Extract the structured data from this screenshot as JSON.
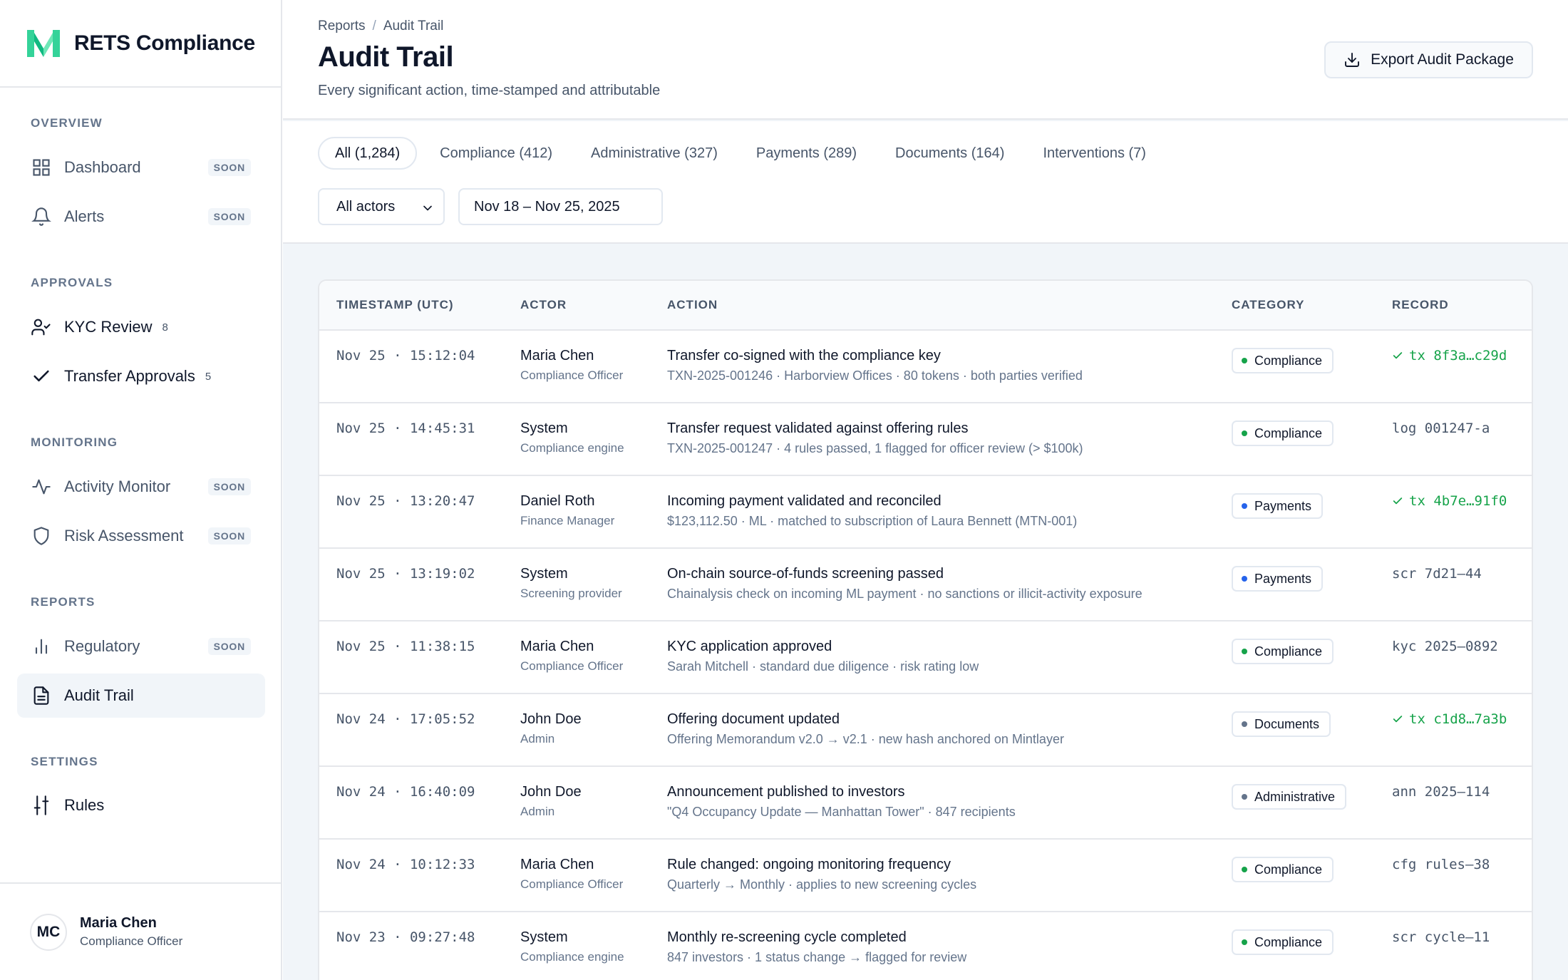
{
  "brand": {
    "name": "RETS Compliance",
    "accent": "#34d399"
  },
  "sidebar": {
    "sections": [
      {
        "title": "OVERVIEW"
      },
      {
        "title": "APPROVALS"
      },
      {
        "title": "MONITORING"
      },
      {
        "title": "REPORTS"
      },
      {
        "title": "SETTINGS"
      }
    ],
    "items": [
      {
        "label": "Dashboard",
        "badge": "SOON",
        "icon": "grid-icon"
      },
      {
        "label": "Alerts",
        "badge": "SOON",
        "icon": "bell-icon"
      },
      {
        "label": "KYC Review",
        "count": "8",
        "icon": "user-check-icon"
      },
      {
        "label": "Transfer Approvals",
        "count": "5",
        "icon": "check-icon"
      },
      {
        "label": "Activity Monitor",
        "badge": "SOON",
        "icon": "activity-icon"
      },
      {
        "label": "Risk Assessment",
        "badge": "SOON",
        "icon": "shield-icon"
      },
      {
        "label": "Regulatory",
        "badge": "SOON",
        "icon": "bar-chart-icon"
      },
      {
        "label": "Audit Trail",
        "icon": "file-text-icon",
        "active": true
      },
      {
        "label": "Rules",
        "icon": "sliders-icon"
      }
    ],
    "user": {
      "initials": "MC",
      "name": "Maria Chen",
      "role": "Compliance Officer"
    }
  },
  "header": {
    "breadcrumb": [
      "Reports",
      "Audit Trail"
    ],
    "breadcrumb_sep": "/",
    "title": "Audit Trail",
    "subtitle": "Every significant action, time-stamped and attributable",
    "export_label": "Export Audit Package"
  },
  "filters": {
    "tabs": [
      {
        "label": "All (1,284)",
        "active": true
      },
      {
        "label": "Compliance (412)"
      },
      {
        "label": "Administrative (327)"
      },
      {
        "label": "Payments (289)"
      },
      {
        "label": "Documents (164)"
      },
      {
        "label": "Interventions (7)"
      }
    ],
    "actor_select": "All actors",
    "date_range": "Nov 18 – Nov 25, 2025"
  },
  "table": {
    "columns": [
      "TIMESTAMP (UTC)",
      "ACTOR",
      "ACTION",
      "CATEGORY",
      "RECORD"
    ],
    "category_colors": {
      "Compliance": "#16a34a",
      "Payments": "#2563eb",
      "Documents": "#64748b",
      "Administrative": "#64748b"
    },
    "rows": [
      {
        "timestamp": "Nov 25 · 15:12:04",
        "actor": "Maria Chen",
        "role": "Compliance Officer",
        "action": "Transfer co-signed with the compliance key",
        "detail": "TXN-2025-001246 · Harborview Offices · 80 tokens · both parties verified",
        "category": "Compliance",
        "record": "tx 8f3a…c29d",
        "onchain": true
      },
      {
        "timestamp": "Nov 25 · 14:45:31",
        "actor": "System",
        "role": "Compliance engine",
        "action": "Transfer request validated against offering rules",
        "detail": "TXN-2025-001247 · 4 rules passed, 1 flagged for officer review (> $100k)",
        "category": "Compliance",
        "record": "log 001247-a",
        "onchain": false
      },
      {
        "timestamp": "Nov 25 · 13:20:47",
        "actor": "Daniel Roth",
        "role": "Finance Manager",
        "action": "Incoming payment validated and reconciled",
        "detail": "$123,112.50 · ML · matched to subscription of Laura Bennett (MTN-001)",
        "category": "Payments",
        "record": "tx 4b7e…91f0",
        "onchain": true
      },
      {
        "timestamp": "Nov 25 · 13:19:02",
        "actor": "System",
        "role": "Screening provider",
        "action": "On-chain source-of-funds screening passed",
        "detail": "Chainalysis check on incoming ML payment · no sanctions or illicit-activity exposure",
        "category": "Payments",
        "record": "scr 7d21–44",
        "onchain": false
      },
      {
        "timestamp": "Nov 25 · 11:38:15",
        "actor": "Maria Chen",
        "role": "Compliance Officer",
        "action": "KYC application approved",
        "detail": "Sarah Mitchell · standard due diligence · risk rating low",
        "category": "Compliance",
        "record": "kyc 2025–0892",
        "onchain": false
      },
      {
        "timestamp": "Nov 24 · 17:05:52",
        "actor": "John Doe",
        "role": "Admin",
        "action": "Offering document updated",
        "detail": "Offering Memorandum v2.0 → v2.1 · new hash anchored on Mintlayer",
        "category": "Documents",
        "record": "tx c1d8…7a3b",
        "onchain": true
      },
      {
        "timestamp": "Nov 24 · 16:40:09",
        "actor": "John Doe",
        "role": "Admin",
        "action": "Announcement published to investors",
        "detail": "\"Q4 Occupancy Update — Manhattan Tower\" · 847 recipients",
        "category": "Administrative",
        "record": "ann 2025–114",
        "onchain": false
      },
      {
        "timestamp": "Nov 24 · 10:12:33",
        "actor": "Maria Chen",
        "role": "Compliance Officer",
        "action": "Rule changed: ongoing monitoring frequency",
        "detail": "Quarterly → Monthly · applies to new screening cycles",
        "category": "Compliance",
        "record": "cfg rules–38",
        "onchain": false
      },
      {
        "timestamp": "Nov 23 · 09:27:48",
        "actor": "System",
        "role": "Compliance engine",
        "action": "Monthly re-screening cycle completed",
        "detail": "847 investors · 1 status change → flagged for review",
        "category": "Compliance",
        "record": "scr cycle–11",
        "onchain": false
      }
    ]
  }
}
